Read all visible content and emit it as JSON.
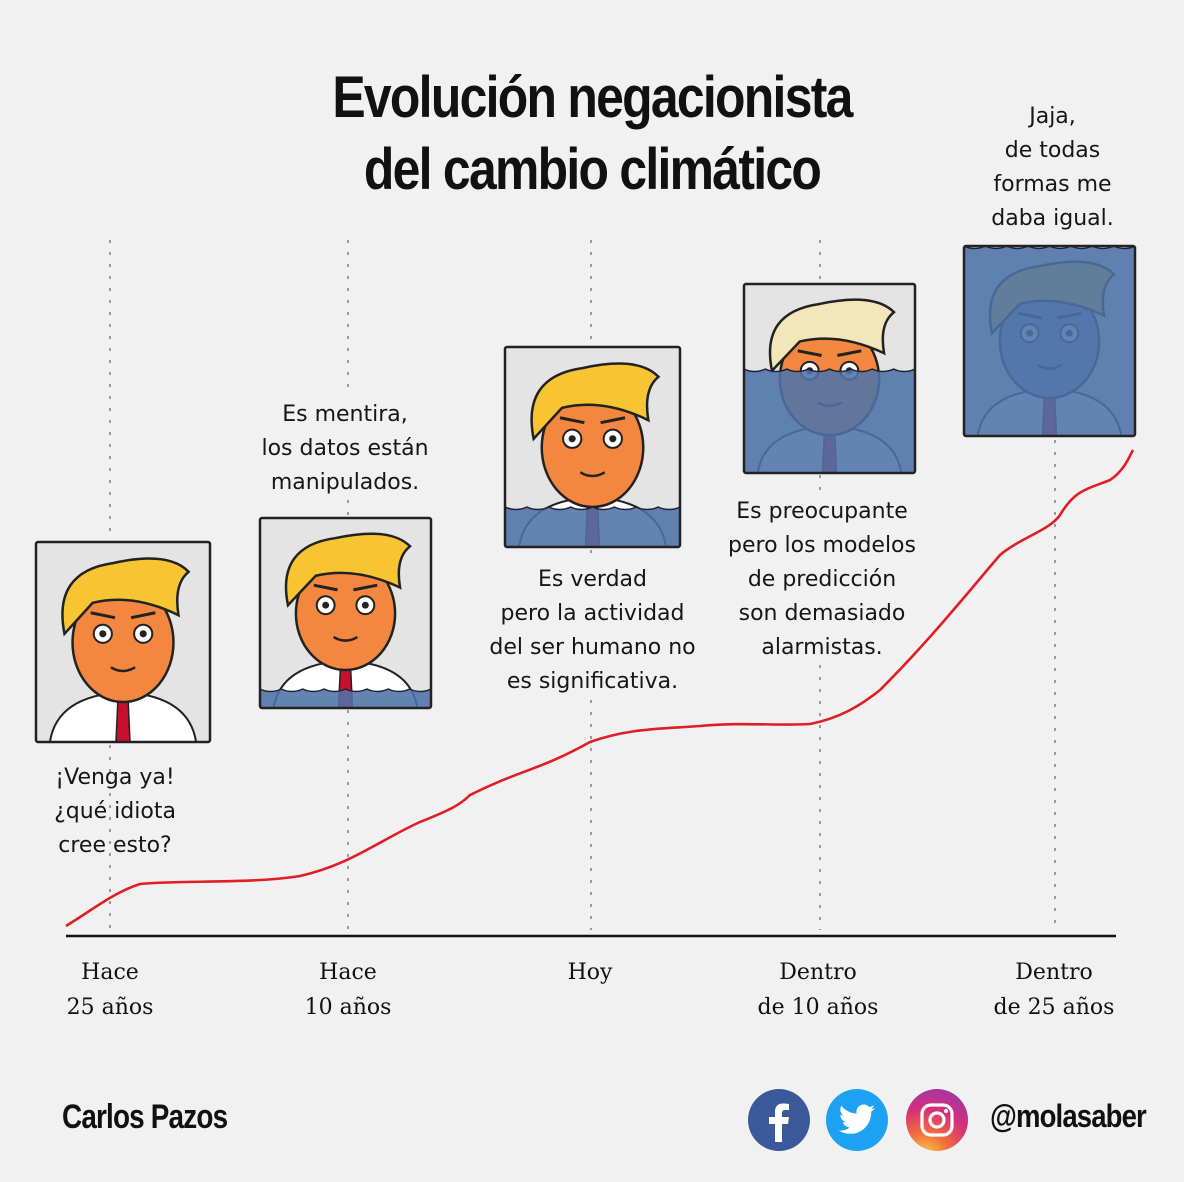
{
  "title": {
    "line1": "Evolución negacionista",
    "line2": "del cambio climático"
  },
  "colors": {
    "background": "#f1f1f1",
    "curve": "#e21d24",
    "water": "#4d73a8",
    "hair": "#f7c531",
    "skin": "#f3873f",
    "axis": "#111111",
    "dotted": "#9a9a9a"
  },
  "timeline": [
    {
      "label_line1": "Hace",
      "label_line2": "25 años"
    },
    {
      "label_line1": "Hace",
      "label_line2": "10 años"
    },
    {
      "label_line1": "Hoy",
      "label_line2": ""
    },
    {
      "label_line1": "Dentro",
      "label_line2": "de 10 años"
    },
    {
      "label_line1": "Dentro",
      "label_line2": "de 25 años"
    }
  ],
  "panels": [
    {
      "water_level": 0.0,
      "quote": [
        "¡Venga ya!",
        "¿qué idiota",
        "cree esto?"
      ]
    },
    {
      "water_level": 0.1,
      "quote": [
        "Es mentira,",
        "los datos están",
        "manipulados."
      ]
    },
    {
      "water_level": 0.2,
      "quote": [
        "Es verdad",
        "pero la actividad",
        "del ser humano no",
        "es significativa."
      ]
    },
    {
      "water_level": 0.55,
      "quote": [
        "Es preocupante",
        "pero los modelos",
        "de predicción",
        "son demasiado",
        "alarmistas."
      ]
    },
    {
      "water_level": 1.0,
      "quote": [
        "Jaja,",
        "de todas",
        "formas me",
        "daba igual."
      ]
    }
  ],
  "footer": {
    "author": "Carlos Pazos",
    "handle": "@molasaber",
    "social_icons": [
      "facebook-icon",
      "twitter-icon",
      "instagram-icon"
    ]
  }
}
